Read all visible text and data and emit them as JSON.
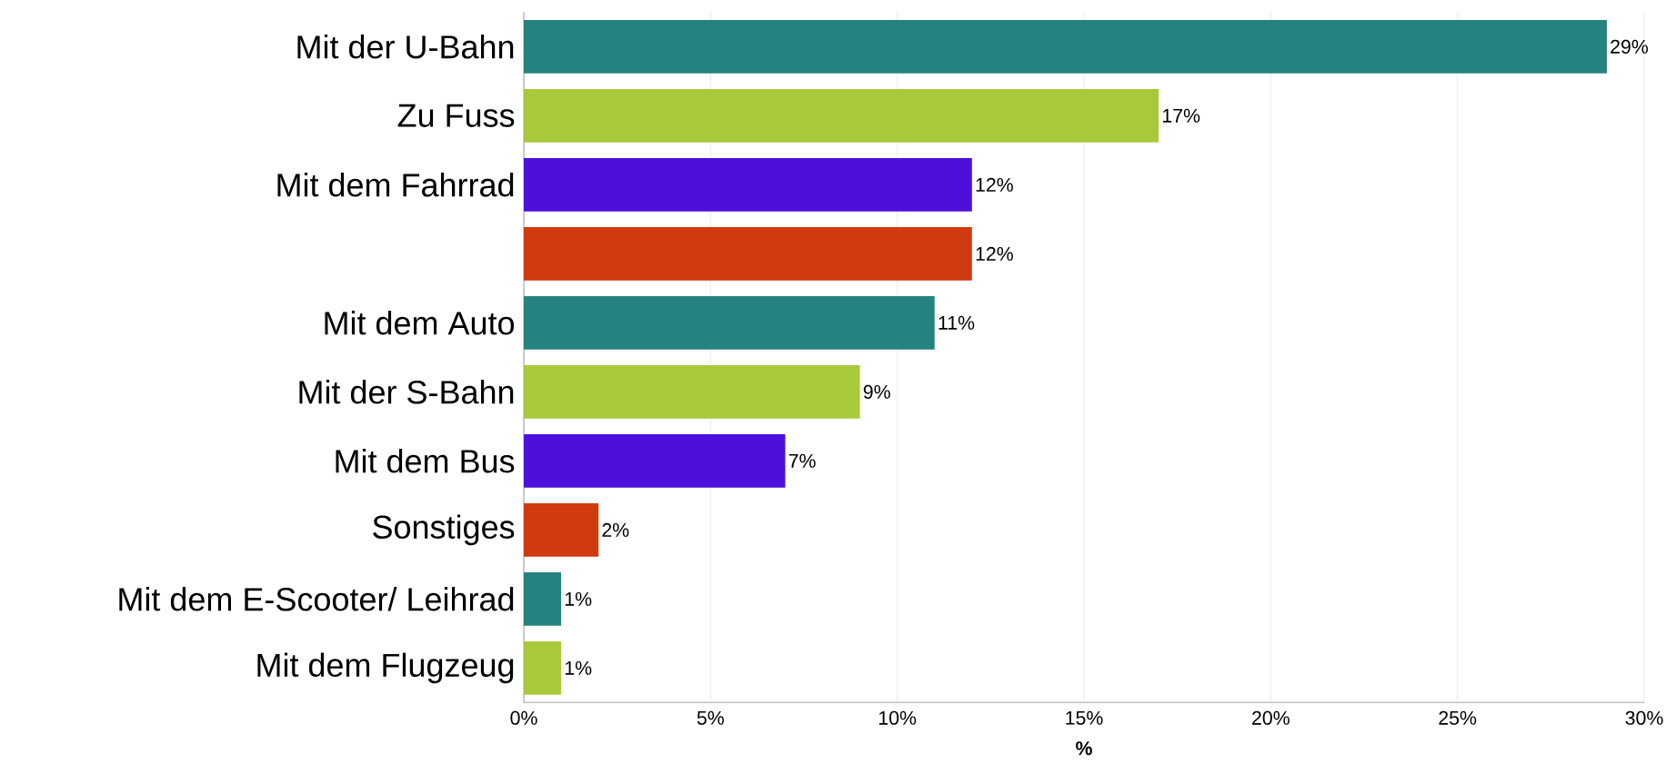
{
  "chart_data": {
    "type": "bar",
    "orientation": "horizontal",
    "xlabel": "%",
    "categories": [
      "Mit der U-Bahn",
      "Zu Fuss",
      "Mit dem Fahrrad",
      null,
      "Mit dem Auto",
      "Mit der S-Bahn",
      "Mit dem Bus",
      "Sonstiges",
      "Mit dem E-Scooter/ Leihrad",
      "Mit dem Flugzeug"
    ],
    "values": [
      29,
      17,
      12,
      12,
      11,
      9,
      7,
      2,
      1,
      1
    ],
    "value_labels": [
      "29%",
      "17%",
      "12%",
      "12%",
      "11%",
      "9%",
      "7%",
      "2%",
      "1%",
      "1%"
    ],
    "colors": [
      "#26827f",
      "#a9c93c",
      "#4c0fdc",
      "#cf3a10",
      "#26827f",
      "#a9c93c",
      "#4c0fdc",
      "#cf3a10",
      "#26827f",
      "#a9c93c"
    ],
    "xlim": [
      0,
      30
    ],
    "xticks": [
      {
        "value": 0,
        "label": "0%"
      },
      {
        "value": 5,
        "label": "5%"
      },
      {
        "value": 10,
        "label": "10%"
      },
      {
        "value": 15,
        "label": "15%"
      },
      {
        "value": 20,
        "label": "20%"
      },
      {
        "value": 25,
        "label": "25%"
      },
      {
        "value": 30,
        "label": "30%"
      }
    ],
    "grid": "x"
  }
}
